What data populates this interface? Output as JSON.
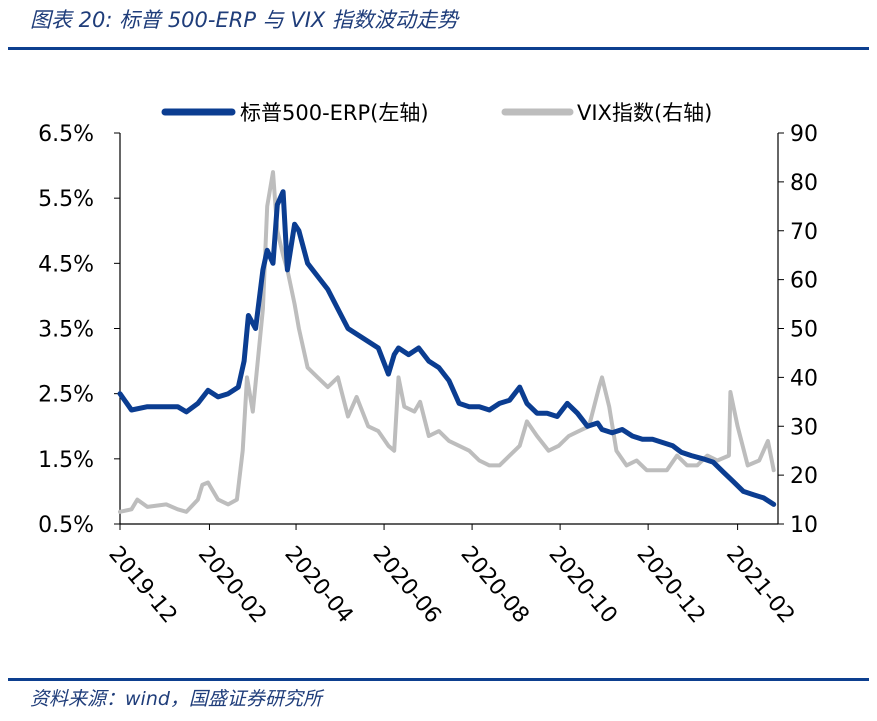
{
  "figure": {
    "title": "图表 20:  标普 500-ERP 与 VIX 指数波动走势",
    "source": "资料来源：wind，国盛证券研究所"
  },
  "colors": {
    "erp": "#0b3d91",
    "vix": "#bdbdbd",
    "axis": "#000000",
    "rule": "#0d3f8f"
  },
  "chart_data": {
    "type": "line",
    "legend_position": "top",
    "grid": false,
    "x_tick_labels": [
      "2019-12",
      "2020-02",
      "2020-04",
      "2020-06",
      "2020-08",
      "2020-10",
      "2020-12",
      "2021-02"
    ],
    "xlim": [
      "2019-12-01",
      "2021-03-01"
    ],
    "y_left": {
      "tick_labels": [
        "6.5%",
        "5.5%",
        "4.5%",
        "3.5%",
        "2.5%",
        "1.5%",
        "0.5%"
      ],
      "ylim": [
        0.5,
        6.5
      ],
      "unit": "%"
    },
    "y_right": {
      "tick_labels": [
        "90",
        "80",
        "70",
        "60",
        "50",
        "40",
        "30",
        "20",
        "10"
      ],
      "ylim": [
        10,
        90
      ]
    },
    "series": [
      {
        "name": "标普500-ERP(左轴)",
        "axis": "left",
        "x": [
          "2019-12-01",
          "2019-12-09",
          "2019-12-20",
          "2020-01-02",
          "2020-01-10",
          "2020-01-16",
          "2020-01-24",
          "2020-01-31",
          "2020-02-07",
          "2020-02-14",
          "2020-02-21",
          "2020-02-25",
          "2020-02-28",
          "2020-03-04",
          "2020-03-09",
          "2020-03-12",
          "2020-03-16",
          "2020-03-19",
          "2020-03-23",
          "2020-03-26",
          "2020-03-31",
          "2020-04-03",
          "2020-04-09",
          "2020-04-16",
          "2020-04-23",
          "2020-04-30",
          "2020-05-07",
          "2020-05-14",
          "2020-05-21",
          "2020-05-28",
          "2020-06-04",
          "2020-06-08",
          "2020-06-11",
          "2020-06-18",
          "2020-06-25",
          "2020-07-02",
          "2020-07-09",
          "2020-07-16",
          "2020-07-23",
          "2020-07-30",
          "2020-08-06",
          "2020-08-13",
          "2020-08-20",
          "2020-08-27",
          "2020-09-03",
          "2020-09-08",
          "2020-09-15",
          "2020-09-22",
          "2020-09-29",
          "2020-10-06",
          "2020-10-13",
          "2020-10-20",
          "2020-10-27",
          "2020-10-30",
          "2020-11-06",
          "2020-11-13",
          "2020-11-20",
          "2020-11-27",
          "2020-12-04",
          "2020-12-11",
          "2020-12-18",
          "2020-12-24",
          "2020-12-31",
          "2021-01-08",
          "2021-01-15",
          "2021-01-22",
          "2021-01-29",
          "2021-02-05",
          "2021-02-12",
          "2021-02-19",
          "2021-02-26"
        ],
        "values": [
          2.5,
          2.25,
          2.3,
          2.3,
          2.3,
          2.22,
          2.35,
          2.55,
          2.45,
          2.5,
          2.6,
          3.0,
          3.7,
          3.5,
          4.4,
          4.7,
          4.5,
          5.4,
          5.6,
          4.4,
          5.1,
          5.0,
          4.5,
          4.3,
          4.1,
          3.8,
          3.5,
          3.4,
          3.3,
          3.2,
          2.8,
          3.1,
          3.2,
          3.1,
          3.2,
          3.0,
          2.9,
          2.7,
          2.35,
          2.3,
          2.3,
          2.25,
          2.35,
          2.4,
          2.6,
          2.35,
          2.2,
          2.2,
          2.15,
          2.35,
          2.2,
          2.0,
          2.05,
          1.95,
          1.9,
          1.95,
          1.85,
          1.8,
          1.8,
          1.75,
          1.7,
          1.6,
          1.55,
          1.5,
          1.45,
          1.3,
          1.15,
          1.0,
          0.95,
          0.9,
          0.8
        ]
      },
      {
        "name": "VIX指数(右轴)",
        "axis": "right",
        "x": [
          "2019-12-01",
          "2019-12-09",
          "2019-12-13",
          "2019-12-20",
          "2020-01-02",
          "2020-01-10",
          "2020-01-16",
          "2020-01-24",
          "2020-01-27",
          "2020-01-31",
          "2020-02-07",
          "2020-02-14",
          "2020-02-20",
          "2020-02-24",
          "2020-02-27",
          "2020-03-02",
          "2020-03-09",
          "2020-03-12",
          "2020-03-16",
          "2020-03-19",
          "2020-03-23",
          "2020-03-26",
          "2020-03-31",
          "2020-04-03",
          "2020-04-09",
          "2020-04-16",
          "2020-04-23",
          "2020-04-30",
          "2020-05-07",
          "2020-05-13",
          "2020-05-21",
          "2020-05-28",
          "2020-06-04",
          "2020-06-08",
          "2020-06-11",
          "2020-06-15",
          "2020-06-22",
          "2020-06-26",
          "2020-07-02",
          "2020-07-09",
          "2020-07-16",
          "2020-07-23",
          "2020-07-30",
          "2020-08-06",
          "2020-08-13",
          "2020-08-20",
          "2020-08-27",
          "2020-09-03",
          "2020-09-08",
          "2020-09-15",
          "2020-09-23",
          "2020-09-30",
          "2020-10-07",
          "2020-10-14",
          "2020-10-21",
          "2020-10-28",
          "2020-10-30",
          "2020-11-04",
          "2020-11-09",
          "2020-11-16",
          "2020-11-23",
          "2020-11-30",
          "2020-12-07",
          "2020-12-14",
          "2020-12-21",
          "2020-12-28",
          "2021-01-04",
          "2021-01-11",
          "2021-01-18",
          "2021-01-26",
          "2021-01-27",
          "2021-02-01",
          "2021-02-08",
          "2021-02-16",
          "2021-02-22",
          "2021-02-26"
        ],
        "values": [
          12.5,
          13,
          15,
          13.5,
          14,
          13,
          12.5,
          15,
          18,
          18.5,
          15,
          14,
          15,
          25,
          40,
          33,
          54,
          75,
          82,
          70,
          65,
          62,
          55,
          50,
          42,
          40,
          38,
          40,
          32,
          36,
          30,
          29,
          26,
          25,
          40,
          34,
          33,
          35,
          28,
          29,
          27,
          26,
          25,
          23,
          22,
          22,
          24,
          26,
          31,
          28,
          25,
          26,
          28,
          29,
          30,
          38,
          40,
          34,
          25,
          22,
          23,
          21,
          21,
          21,
          24,
          22,
          22,
          24,
          23,
          24,
          37,
          30,
          22,
          23,
          27,
          21
        ]
      }
    ]
  }
}
